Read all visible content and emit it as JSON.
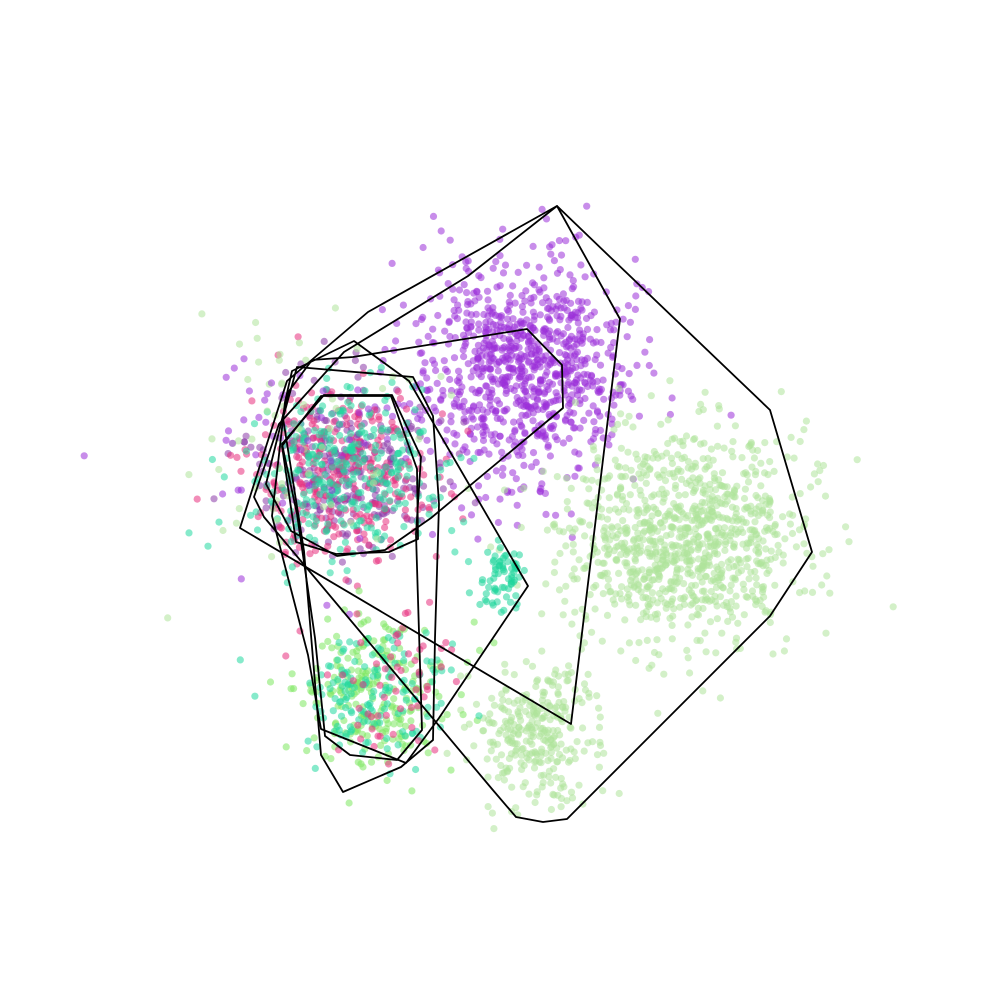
{
  "chart_data": {
    "type": "scatter",
    "title": "",
    "xlabel": "",
    "ylabel": "",
    "xlim": [
      0,
      100
    ],
    "ylim": [
      0,
      100
    ],
    "axes_visible": false,
    "grid": false,
    "legend": "none",
    "point_opacity": 0.55,
    "seed": 20240611,
    "clusters": [
      {
        "id": "c1",
        "color": "#9b30d9",
        "center": [
          52.0,
          63.0
        ],
        "spread": [
          5.2,
          5.4
        ],
        "count": 900
      },
      {
        "id": "c2",
        "color": "#aee39a",
        "center": [
          68.5,
          46.0
        ],
        "spread": [
          6.0,
          5.2
        ],
        "count": 1000
      },
      {
        "id": "c3",
        "color": "#aee39a",
        "center": [
          53.5,
          26.5
        ],
        "spread": [
          3.2,
          3.6
        ],
        "count": 300
      },
      {
        "id": "c4",
        "color": "#1ed69a",
        "center": [
          50.3,
          42.3
        ],
        "spread": [
          1.1,
          1.4
        ],
        "count": 70
      },
      {
        "id": "c5",
        "color": "#8b3aa8",
        "center": [
          34.5,
          53.0
        ],
        "spread": [
          4.2,
          4.0
        ],
        "count": 300
      },
      {
        "id": "c6",
        "color": "#e8307e",
        "center": [
          34.5,
          53.0
        ],
        "spread": [
          4.4,
          4.2
        ],
        "count": 300
      },
      {
        "id": "c7",
        "color": "#22d9a0",
        "center": [
          34.5,
          52.5
        ],
        "spread": [
          4.6,
          4.4
        ],
        "count": 320
      },
      {
        "id": "c8",
        "color": "#7ee860",
        "center": [
          37.5,
          30.5
        ],
        "spread": [
          3.8,
          3.6
        ],
        "count": 240
      },
      {
        "id": "c9",
        "color": "#22d9a0",
        "center": [
          37.5,
          30.5
        ],
        "spread": [
          3.4,
          3.2
        ],
        "count": 150
      },
      {
        "id": "c10",
        "color": "#e8307e",
        "center": [
          38.5,
          32.0
        ],
        "spread": [
          3.8,
          3.8
        ],
        "count": 60
      },
      {
        "id": "c11",
        "color": "#aee39a",
        "center": [
          30.0,
          55.0
        ],
        "spread": [
          6.5,
          6.0
        ],
        "count": 60
      },
      {
        "id": "c12",
        "color": "#9b30d9",
        "center": [
          28.0,
          55.0
        ],
        "spread": [
          6.0,
          6.5
        ],
        "count": 40
      }
    ],
    "hulls": [
      [
        [
          55.7,
          79.4
        ],
        [
          60.8,
          74.5
        ],
        [
          77.0,
          59.0
        ],
        [
          81.2,
          44.8
        ],
        [
          77.0,
          38.4
        ],
        [
          56.7,
          18.1
        ],
        [
          54.3,
          17.8
        ],
        [
          51.6,
          18.3
        ],
        [
          49.2,
          21.1
        ],
        [
          26.4,
          48.3
        ],
        [
          25.4,
          50.3
        ],
        [
          27.9,
          57.6
        ],
        [
          34.4,
          64.8
        ],
        [
          46.8,
          72.4
        ],
        [
          55.7,
          79.4
        ]
      ],
      [
        [
          55.7,
          79.4
        ],
        [
          62.0,
          68.1
        ],
        [
          57.1,
          27.6
        ],
        [
          24.0,
          47.2
        ],
        [
          28.7,
          61.9
        ],
        [
          36.8,
          68.8
        ],
        [
          55.7,
          79.4
        ]
      ],
      [
        [
          52.7,
          67.1
        ],
        [
          56.2,
          63.5
        ],
        [
          56.3,
          59.2
        ],
        [
          43.1,
          48.2
        ],
        [
          38.5,
          45.0
        ],
        [
          33.7,
          44.4
        ],
        [
          29.1,
          46.9
        ],
        [
          26.6,
          51.6
        ],
        [
          28.9,
          60.9
        ],
        [
          31.2,
          64.0
        ],
        [
          35.3,
          64.3
        ],
        [
          52.7,
          67.1
        ]
      ],
      [
        [
          35.4,
          65.9
        ],
        [
          40.9,
          61.9
        ],
        [
          52.8,
          41.4
        ],
        [
          43.9,
          28.2
        ],
        [
          40.6,
          23.7
        ],
        [
          32.1,
          27.1
        ],
        [
          30.8,
          34.5
        ],
        [
          27.2,
          48.4
        ],
        [
          28.5,
          59.8
        ],
        [
          29.2,
          62.9
        ],
        [
          35.4,
          65.9
        ]
      ],
      [
        [
          29.7,
          63.3
        ],
        [
          41.3,
          62.3
        ],
        [
          43.3,
          58.4
        ],
        [
          43.9,
          49.6
        ],
        [
          43.5,
          36.2
        ],
        [
          43.3,
          26.0
        ],
        [
          40.1,
          23.3
        ],
        [
          34.3,
          20.8
        ],
        [
          32.1,
          24.5
        ],
        [
          30.4,
          44.9
        ],
        [
          28.3,
          58.2
        ],
        [
          29.7,
          63.3
        ]
      ],
      [
        [
          32.4,
          60.5
        ],
        [
          39.2,
          60.5
        ],
        [
          42.1,
          54.3
        ],
        [
          41.6,
          46.6
        ],
        [
          42.2,
          27.0
        ],
        [
          39.7,
          24.0
        ],
        [
          35.0,
          24.5
        ],
        [
          32.5,
          26.4
        ],
        [
          31.5,
          36.2
        ],
        [
          29.7,
          48.6
        ],
        [
          28.2,
          55.6
        ],
        [
          32.4,
          60.5
        ]
      ],
      [
        [
          28.2,
          55.4
        ],
        [
          32.1,
          60.4
        ],
        [
          39.1,
          60.4
        ],
        [
          41.7,
          53.1
        ],
        [
          41.8,
          46.1
        ],
        [
          38.9,
          44.8
        ],
        [
          33.6,
          44.6
        ],
        [
          29.6,
          45.8
        ],
        [
          28.2,
          55.4
        ]
      ]
    ]
  }
}
